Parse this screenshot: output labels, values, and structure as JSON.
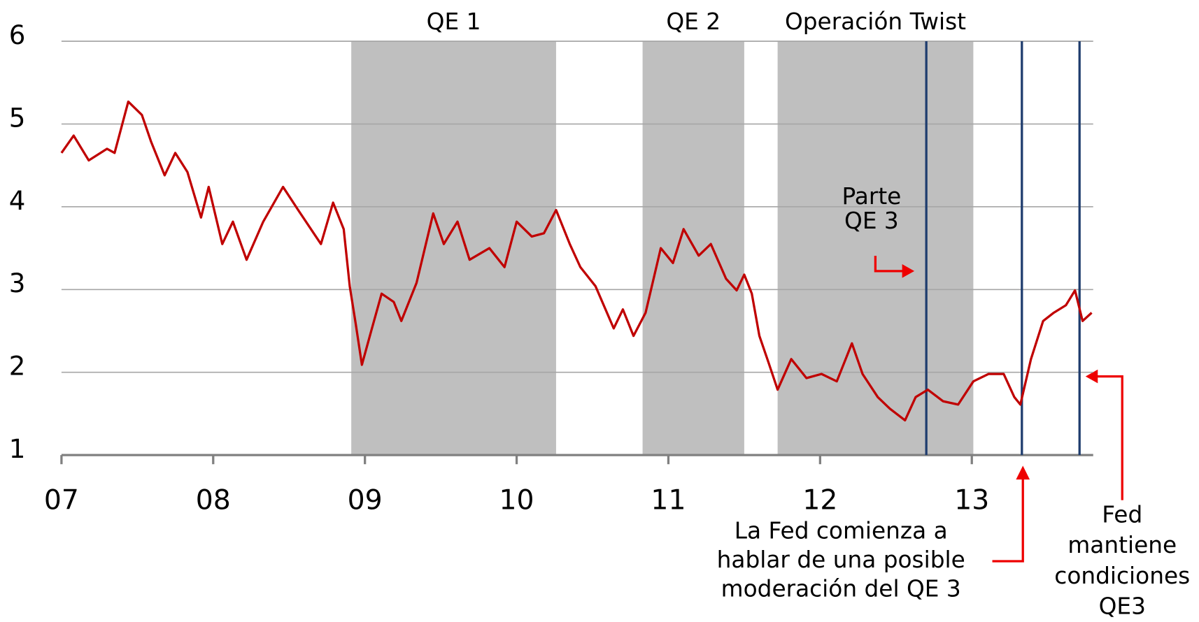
{
  "chart_data": {
    "type": "line",
    "color": "#c00000",
    "xlim": [
      7,
      13.8
    ],
    "ylim": [
      1,
      6
    ],
    "yticks": [
      1,
      2,
      3,
      4,
      5,
      6
    ],
    "xticks": [
      {
        "value": 7,
        "label": "07"
      },
      {
        "value": 8,
        "label": "08"
      },
      {
        "value": 9,
        "label": "09"
      },
      {
        "value": 10,
        "label": "10"
      },
      {
        "value": 11,
        "label": "11"
      },
      {
        "value": 12,
        "label": "12"
      },
      {
        "value": 13,
        "label": "13"
      }
    ],
    "grid": true,
    "spans": [
      {
        "label": "QE 1",
        "start": 8.91,
        "end": 10.26,
        "color": "#bfbfbf"
      },
      {
        "label": "QE 2",
        "start": 10.83,
        "end": 11.5,
        "color": "#bfbfbf"
      },
      {
        "label": "Operación Twist",
        "start": 11.72,
        "end": 13.01,
        "color": "#bfbfbf"
      }
    ],
    "vlines": [
      12.7,
      13.33,
      13.71
    ],
    "vline_color": "#1f3d6e",
    "annotations": [
      {
        "lines": [
          "Parte",
          "QE 3"
        ]
      },
      {
        "lines": [
          "La Fed comienza a",
          "hablar de una posible",
          "moderación del QE 3"
        ]
      },
      {
        "lines": [
          "Fed",
          "mantiene",
          "condiciones",
          "QE3"
        ]
      }
    ],
    "x": [
      7.0,
      7.08,
      7.18,
      7.3,
      7.35,
      7.44,
      7.53,
      7.59,
      7.68,
      7.75,
      7.83,
      7.92,
      7.97,
      8.06,
      8.13,
      8.22,
      8.33,
      8.46,
      8.56,
      8.71,
      8.79,
      8.86,
      8.9,
      8.94,
      8.98,
      9.04,
      9.11,
      9.19,
      9.24,
      9.34,
      9.45,
      9.52,
      9.61,
      9.69,
      9.82,
      9.92,
      10.0,
      10.1,
      10.18,
      10.26,
      10.35,
      10.42,
      10.52,
      10.64,
      10.7,
      10.77,
      10.85,
      10.95,
      11.03,
      11.1,
      11.2,
      11.28,
      11.38,
      11.45,
      11.5,
      11.55,
      11.6,
      11.66,
      11.72,
      11.81,
      11.91,
      12.01,
      12.11,
      12.21,
      12.28,
      12.38,
      12.46,
      12.56,
      12.63,
      12.71,
      12.81,
      12.91,
      13.01,
      13.11,
      13.21,
      13.28,
      13.32,
      13.39,
      13.47,
      13.54,
      13.62,
      13.68,
      13.73,
      13.79
    ],
    "values": [
      4.65,
      4.86,
      4.56,
      4.7,
      4.65,
      5.27,
      5.11,
      4.79,
      4.38,
      4.65,
      4.42,
      3.87,
      4.24,
      3.55,
      3.82,
      3.36,
      3.82,
      4.24,
      3.96,
      3.55,
      4.05,
      3.73,
      3.04,
      2.58,
      2.09,
      2.49,
      2.95,
      2.85,
      2.62,
      3.08,
      3.92,
      3.55,
      3.82,
      3.36,
      3.5,
      3.27,
      3.82,
      3.64,
      3.68,
      3.96,
      3.55,
      3.27,
      3.04,
      2.53,
      2.76,
      2.44,
      2.72,
      3.5,
      3.32,
      3.73,
      3.41,
      3.55,
      3.13,
      2.99,
      3.18,
      2.95,
      2.44,
      2.12,
      1.79,
      2.16,
      1.93,
      1.98,
      1.89,
      2.35,
      1.98,
      1.7,
      1.56,
      1.42,
      1.7,
      1.79,
      1.65,
      1.61,
      1.89,
      1.98,
      1.98,
      1.7,
      1.61,
      2.16,
      2.62,
      2.72,
      2.81,
      2.99,
      2.62,
      2.72
    ]
  }
}
